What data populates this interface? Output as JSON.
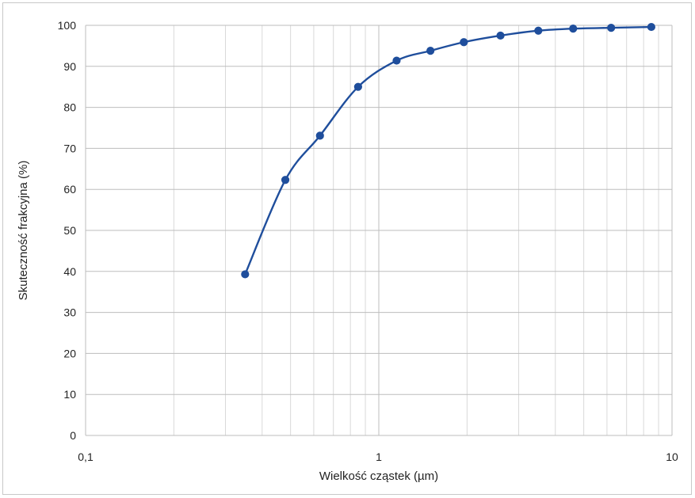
{
  "chart_data": {
    "type": "line",
    "x_scale": "log",
    "xlabel": "Wielkość cząstek (µm)",
    "ylabel": "Skuteczność frakcyjna (%)",
    "xlim": [
      0.1,
      10
    ],
    "ylim": [
      0,
      100
    ],
    "x_ticks": [
      0.1,
      1,
      10
    ],
    "x_tick_labels": [
      "0,1",
      "1",
      "10"
    ],
    "y_ticks": [
      0,
      10,
      20,
      30,
      40,
      50,
      60,
      70,
      80,
      90,
      100
    ],
    "y_tick_labels": [
      "0",
      "10",
      "20",
      "30",
      "40",
      "50",
      "60",
      "70",
      "80",
      "90",
      "100"
    ],
    "grid": true,
    "colors": {
      "series": "#1f4e9c",
      "grid": "#bdbdbd"
    },
    "series": [
      {
        "x": [
          0.35,
          0.48,
          0.63,
          0.85,
          1.15,
          1.5,
          1.95,
          2.6,
          3.5,
          4.6,
          6.2,
          8.5
        ],
        "y": [
          39.3,
          62.3,
          73.1,
          85.0,
          91.4,
          93.8,
          95.9,
          97.5,
          98.7,
          99.2,
          99.4,
          99.6
        ]
      }
    ]
  }
}
